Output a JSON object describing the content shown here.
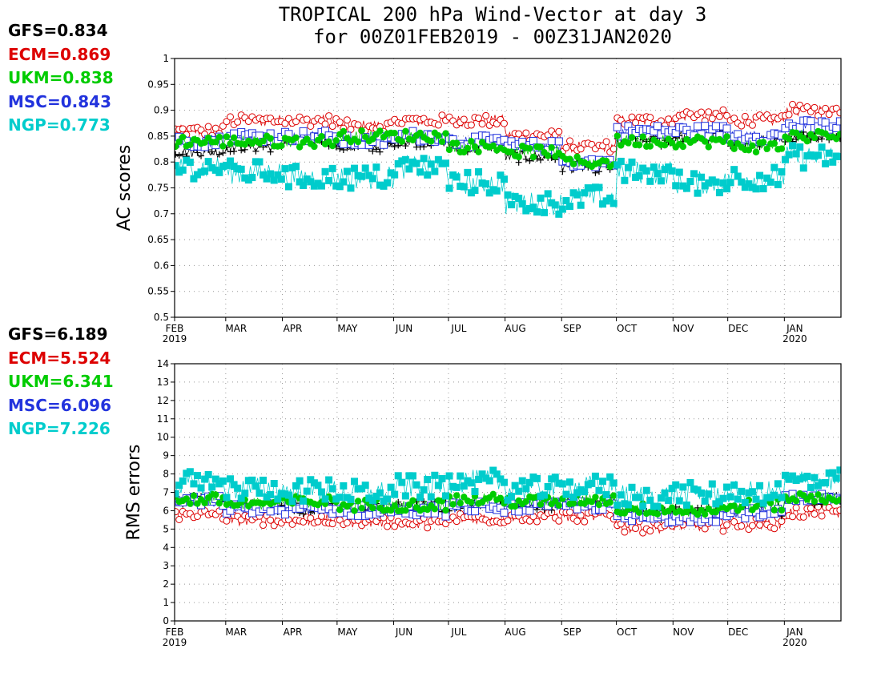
{
  "title": {
    "line1": "TROPICAL 200 hPa Wind-Vector at day 3",
    "line2": "for 00Z01FEB2019 - 00Z31JAN2020"
  },
  "colors": {
    "GFS": "#000000",
    "ECM": "#dd0000",
    "UKM": "#00cc00",
    "MSC": "#2233dd",
    "NGP": "#00cccc"
  },
  "score_panels": {
    "ac": [
      {
        "label": "GFS=0.834",
        "model": "GFS"
      },
      {
        "label": "ECM=0.869",
        "model": "ECM"
      },
      {
        "label": "UKM=0.838",
        "model": "UKM"
      },
      {
        "label": "MSC=0.843",
        "model": "MSC"
      },
      {
        "label": "NGP=0.773",
        "model": "NGP"
      }
    ],
    "rms": [
      {
        "label": "GFS=6.189",
        "model": "GFS"
      },
      {
        "label": "ECM=5.524",
        "model": "ECM"
      },
      {
        "label": "UKM=6.341",
        "model": "UKM"
      },
      {
        "label": "MSC=6.096",
        "model": "MSC"
      },
      {
        "label": "NGP=7.226",
        "model": "NGP"
      }
    ]
  },
  "chart_data": [
    {
      "type": "line",
      "ylabel": "AC scores",
      "ylim": [
        0.5,
        1.0
      ],
      "yticks": [
        "0.5",
        "0.55",
        "0.6",
        "0.65",
        "0.7",
        "0.75",
        "0.8",
        "0.85",
        "0.9",
        "0.95",
        "1"
      ],
      "ytick_values": [
        0.5,
        0.55,
        0.6,
        0.65,
        0.7,
        0.75,
        0.8,
        0.85,
        0.9,
        0.95,
        1.0
      ],
      "x_range": [
        "2019-02-01",
        "2020-01-31"
      ],
      "x_month_labels": [
        "FEB",
        "MAR",
        "APR",
        "MAY",
        "JUN",
        "JUL",
        "AUG",
        "SEP",
        "OCT",
        "NOV",
        "DEC",
        "JAN"
      ],
      "x_year_labels": [
        {
          "month_index": 0,
          "text": "2019"
        },
        {
          "month_index": 11,
          "text": "2020"
        }
      ],
      "grid": true,
      "series": [
        {
          "name": "GFS",
          "marker": "plus",
          "monthly_means": [
            0.82,
            0.83,
            0.84,
            0.83,
            0.84,
            0.83,
            0.81,
            0.79,
            0.84,
            0.85,
            0.84,
            0.85
          ]
        },
        {
          "name": "ECM",
          "marker": "open-circle",
          "monthly_means": [
            0.86,
            0.88,
            0.88,
            0.87,
            0.88,
            0.88,
            0.85,
            0.83,
            0.88,
            0.89,
            0.88,
            0.9
          ]
        },
        {
          "name": "UKM",
          "marker": "filled-circle",
          "monthly_means": [
            0.84,
            0.84,
            0.84,
            0.85,
            0.85,
            0.83,
            0.82,
            0.8,
            0.84,
            0.84,
            0.83,
            0.85
          ]
        },
        {
          "name": "MSC",
          "marker": "open-square",
          "monthly_means": [
            0.84,
            0.85,
            0.85,
            0.84,
            0.85,
            0.84,
            0.83,
            0.8,
            0.86,
            0.86,
            0.85,
            0.87
          ]
        },
        {
          "name": "NGP",
          "marker": "filled-square",
          "monthly_means": [
            0.79,
            0.78,
            0.77,
            0.77,
            0.79,
            0.76,
            0.72,
            0.73,
            0.78,
            0.76,
            0.77,
            0.81
          ]
        }
      ]
    },
    {
      "type": "line",
      "ylabel": "RMS errors",
      "ylim": [
        0,
        14
      ],
      "yticks": [
        "0",
        "1",
        "2",
        "3",
        "4",
        "5",
        "6",
        "7",
        "8",
        "9",
        "10",
        "11",
        "12",
        "13",
        "14"
      ],
      "ytick_values": [
        0,
        1,
        2,
        3,
        4,
        5,
        6,
        7,
        8,
        9,
        10,
        11,
        12,
        13,
        14
      ],
      "x_range": [
        "2019-02-01",
        "2020-01-31"
      ],
      "x_month_labels": [
        "FEB",
        "MAR",
        "APR",
        "MAY",
        "JUN",
        "JUL",
        "AUG",
        "SEP",
        "OCT",
        "NOV",
        "DEC",
        "JAN"
      ],
      "x_year_labels": [
        {
          "month_index": 0,
          "text": "2019"
        },
        {
          "month_index": 11,
          "text": "2020"
        }
      ],
      "grid": true,
      "series": [
        {
          "name": "GFS",
          "marker": "plus",
          "monthly_means": [
            6.6,
            6.2,
            6.1,
            6.1,
            6.2,
            6.3,
            6.3,
            6.4,
            5.8,
            5.9,
            6.0,
            6.6
          ]
        },
        {
          "name": "ECM",
          "marker": "open-circle",
          "monthly_means": [
            5.8,
            5.5,
            5.5,
            5.4,
            5.3,
            5.6,
            5.7,
            5.7,
            5.1,
            5.2,
            5.3,
            5.9
          ]
        },
        {
          "name": "UKM",
          "marker": "filled-circle",
          "monthly_means": [
            6.6,
            6.4,
            6.5,
            6.3,
            6.3,
            6.6,
            6.5,
            6.6,
            6.1,
            6.0,
            6.3,
            6.7
          ]
        },
        {
          "name": "MSC",
          "marker": "open-square",
          "monthly_means": [
            6.5,
            6.1,
            6.1,
            6.0,
            6.0,
            6.2,
            6.2,
            6.3,
            5.6,
            5.7,
            5.9,
            6.6
          ]
        },
        {
          "name": "NGP",
          "marker": "filled-square",
          "monthly_means": [
            7.5,
            7.2,
            7.1,
            7.0,
            7.3,
            7.6,
            7.2,
            7.3,
            6.8,
            6.9,
            7.0,
            7.6
          ]
        }
      ]
    }
  ]
}
